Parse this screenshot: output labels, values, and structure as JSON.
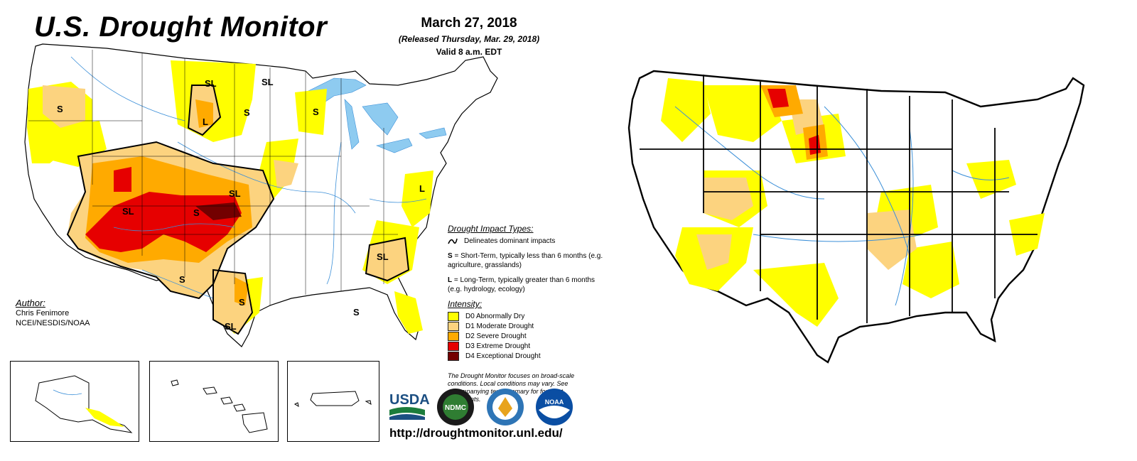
{
  "left_map": {
    "title": "U.S. Drought Monitor",
    "date": "March 27, 2018",
    "released": "(Released Thursday, Mar. 29, 2018)",
    "valid": "Valid 8 a.m. EDT",
    "author": {
      "header": "Author:",
      "name": "Chris Fenimore",
      "org": "NCEI/NESDIS/NOAA"
    },
    "impact_types": {
      "header": "Drought Impact Types:",
      "delineates": "Delineates dominant impacts",
      "short_term_key": "S",
      "short_term_text": " = Short-Term, typically less than 6 months (e.g. agriculture, grasslands)",
      "long_term_key": "L",
      "long_term_text": " = Long-Term, typically greater than 6 months (e.g. hydrology, ecology)"
    },
    "intensity": {
      "header": "Intensity:",
      "levels": [
        {
          "code": "D0",
          "label": "D0 Abnormally Dry",
          "color": "#ffff00"
        },
        {
          "code": "D1",
          "label": "D1 Moderate Drought",
          "color": "#fcd37f"
        },
        {
          "code": "D2",
          "label": "D2 Severe Drought",
          "color": "#ffaa00"
        },
        {
          "code": "D3",
          "label": "D3 Extreme Drought",
          "color": "#e60000"
        },
        {
          "code": "D4",
          "label": "D4 Exceptional Drought",
          "color": "#730000"
        }
      ]
    },
    "note": "The Drought Monitor focuses on broad-scale conditions. Local conditions may vary. See accompanying text summary for forecast statements.",
    "impact_labels": [
      "S",
      "SL",
      "SL",
      "L",
      "S",
      "S",
      "L",
      "SL",
      "SL",
      "S",
      "SL",
      "S",
      "S",
      "SL",
      "S",
      "S"
    ],
    "logos": [
      "USDA",
      "NDMC",
      "DOC",
      "NOAA"
    ],
    "url": "http://droughtmonitor.unl.edu/"
  },
  "colors": {
    "water": "#8ecbf0",
    "river": "#3b8fd8",
    "border": "#000000",
    "d0": "#ffff00",
    "d1": "#fcd37f",
    "d2": "#ffaa00",
    "d3": "#e60000",
    "d4": "#730000"
  }
}
